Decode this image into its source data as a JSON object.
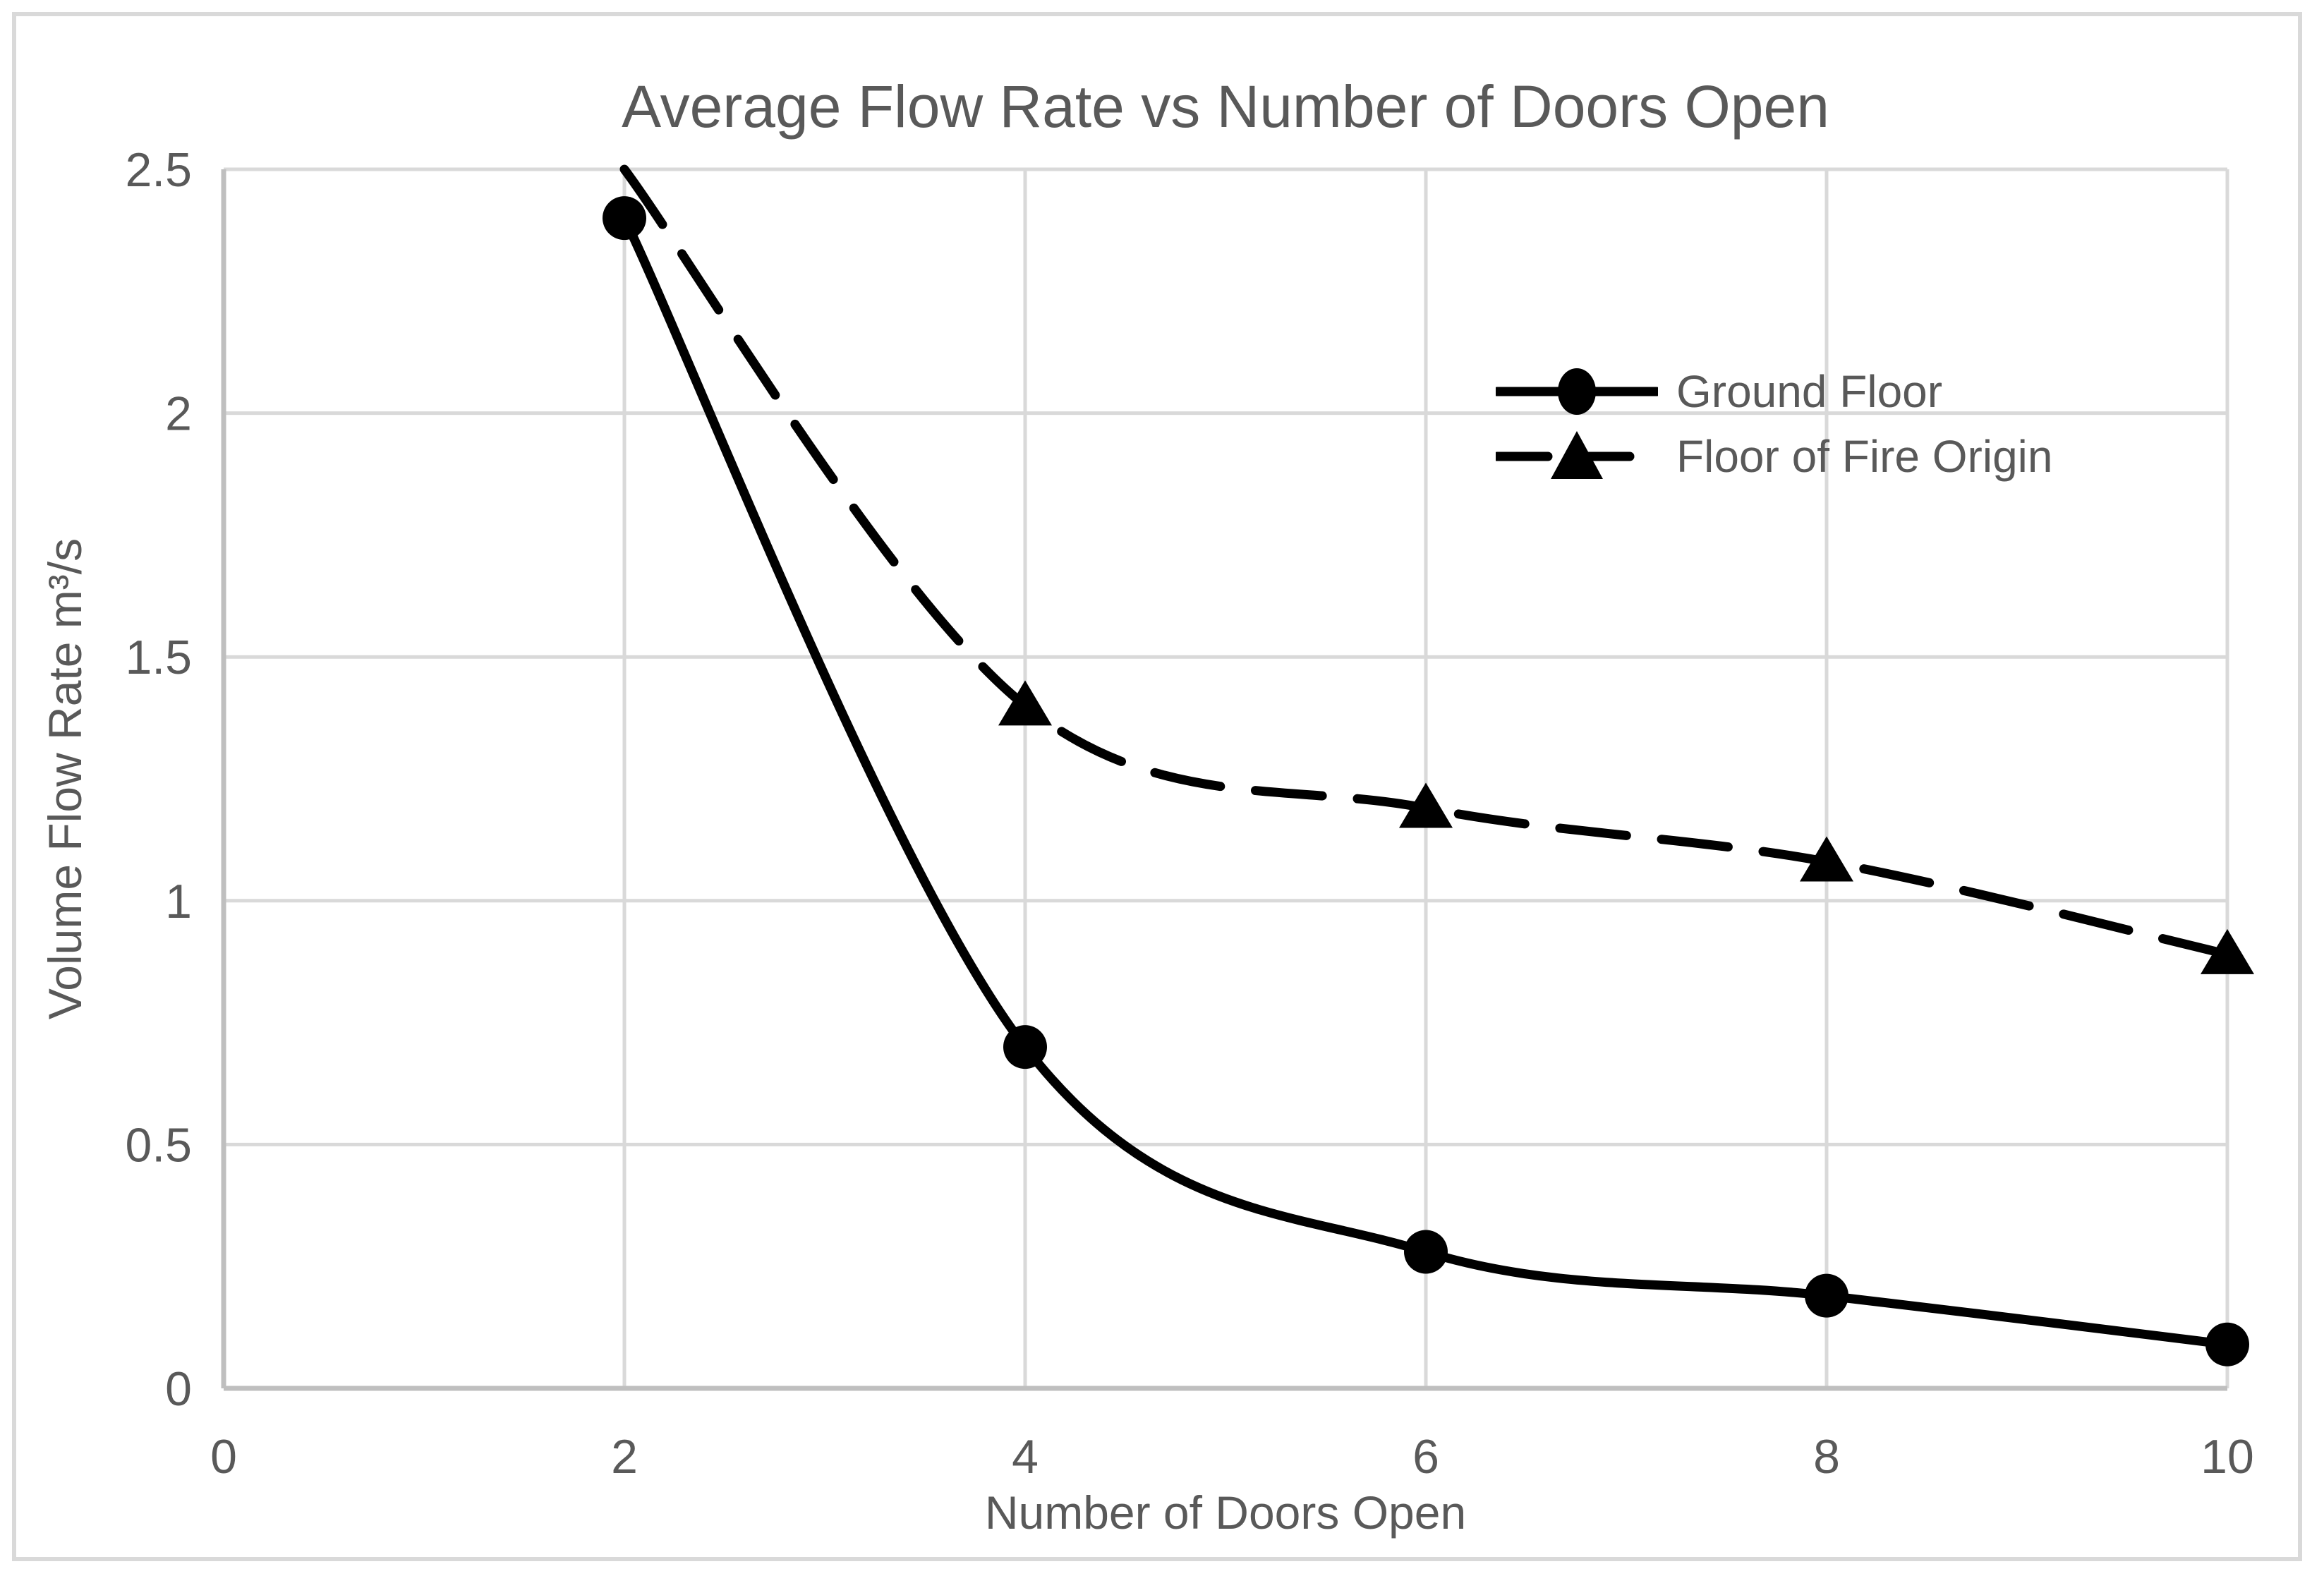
{
  "chart_data": {
    "type": "line",
    "title": "Average Flow Rate vs Number of Doors Open",
    "xlabel": "Number of Doors Open",
    "ylabel": "Volume Flow Rate m³/s",
    "x": [
      2,
      4,
      6,
      8,
      10
    ],
    "series": [
      {
        "name": "Ground Floor",
        "values": [
          2.4,
          0.7,
          0.28,
          0.19,
          0.09
        ],
        "line_style": "solid",
        "marker": "circle"
      },
      {
        "name": "Floor of Fire Origin",
        "values": [
          2.5,
          1.4,
          1.19,
          1.08,
          0.89
        ],
        "line_style": "dashed",
        "marker": "triangle",
        "note": "first point enters at top of plot area; its marker is clipped off-screen"
      }
    ],
    "xlim": [
      0,
      10
    ],
    "ylim": [
      0,
      2.5
    ],
    "x_ticks": [
      0,
      2,
      4,
      6,
      8,
      10
    ],
    "x_tick_labels": [
      "0",
      "2",
      "4",
      "6",
      "8",
      "10"
    ],
    "y_ticks": [
      0,
      0.5,
      1,
      1.5,
      2,
      2.5
    ],
    "y_tick_labels": [
      "0",
      "0.5",
      "1",
      "1.5",
      "2",
      "2.5"
    ],
    "grid": true,
    "legend_position": "inside-upper-right",
    "colors": {
      "series": "#000000",
      "text": "#595959",
      "gridline": "#D9D9D9",
      "axis_line": "#BFBFBF",
      "border": "#D9D9D9",
      "background": "#FFFFFF"
    }
  }
}
